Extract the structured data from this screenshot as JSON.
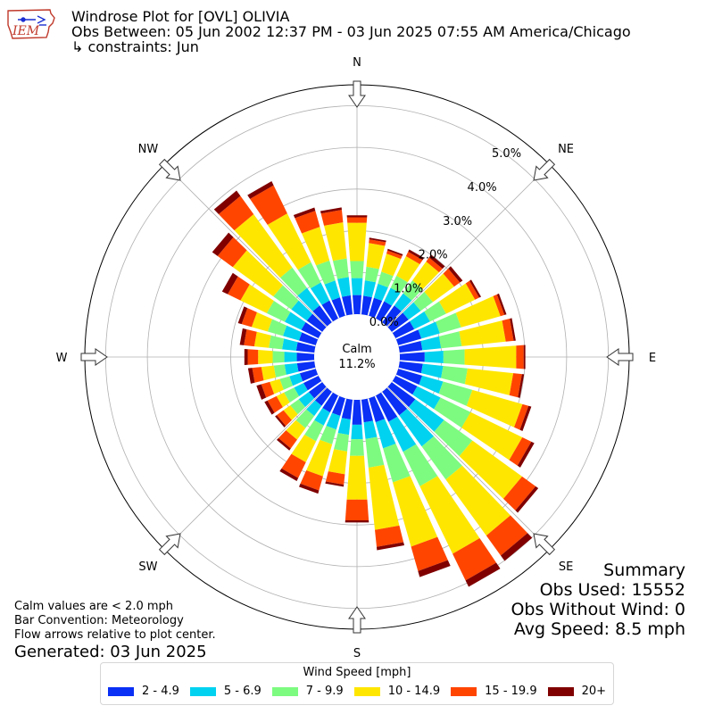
{
  "header": {
    "title": "Windrose Plot for [OVL] OLIVIA",
    "obs_between": "Obs Between: 05 Jun 2002 12:37 PM - 03 Jun 2025 07:55 AM America/Chicago",
    "constraints": "↳ constraints: Jun",
    "logo_text": "IEM"
  },
  "notes": {
    "calm_note": "Calm values are < 2.0 mph",
    "bar_convention": "Bar Convention: Meteorology",
    "flow_arrows": "Flow arrows relative to plot center.",
    "generated": "Generated: 03 Jun 2025"
  },
  "summary": {
    "title": "Summary",
    "obs_used": "Obs Used: 15552",
    "obs_without_wind": "Obs Without Wind: 0",
    "avg_speed": "Avg Speed: 8.5 mph"
  },
  "legend": {
    "title": "Wind Speed [mph]",
    "items": [
      {
        "label": "2 - 4.9",
        "color": "#0a2ff5"
      },
      {
        "label": "5 - 6.9",
        "color": "#00d2f0"
      },
      {
        "label": "7 - 9.9",
        "color": "#7dfb80"
      },
      {
        "label": "10 - 14.9",
        "color": "#ffe600"
      },
      {
        "label": "15 - 19.9",
        "color": "#ff4500"
      },
      {
        "label": "20+",
        "color": "#800000"
      }
    ]
  },
  "chart_data": {
    "type": "windrose",
    "calm_label": "Calm",
    "calm_percent": "11.2%",
    "radial_ticks": [
      "0.0%",
      "1.0%",
      "2.0%",
      "3.0%",
      "4.0%",
      "5.0%"
    ],
    "radial_tick_values": [
      0,
      1,
      2,
      3,
      4,
      5
    ],
    "radial_max": 5.5,
    "radial_label_angle_deg": 36,
    "compass_labels": [
      {
        "label": "N",
        "deg": 0
      },
      {
        "label": "NE",
        "deg": 45
      },
      {
        "label": "E",
        "deg": 90
      },
      {
        "label": "SE",
        "deg": 135
      },
      {
        "label": "S",
        "deg": 180
      },
      {
        "label": "SW",
        "deg": 225
      },
      {
        "label": "W",
        "deg": 270
      },
      {
        "label": "NW",
        "deg": 315
      }
    ],
    "series_names": [
      "2 - 4.9",
      "5 - 6.9",
      "7 - 9.9",
      "10 - 14.9",
      "15 - 19.9",
      "20+"
    ],
    "directions": [
      0,
      10,
      20,
      30,
      40,
      50,
      60,
      70,
      80,
      90,
      100,
      110,
      120,
      130,
      140,
      150,
      160,
      170,
      180,
      190,
      200,
      210,
      220,
      230,
      240,
      250,
      260,
      270,
      280,
      290,
      300,
      310,
      320,
      330,
      340,
      350
    ],
    "cumulative": [
      [
        0.46,
        0.87,
        1.28,
        2.2,
        2.33,
        2.38
      ],
      [
        0.45,
        0.82,
        1.15,
        1.72,
        1.81,
        1.85
      ],
      [
        0.45,
        0.8,
        1.1,
        1.55,
        1.63,
        1.67
      ],
      [
        0.46,
        0.82,
        1.14,
        1.66,
        1.78,
        1.84
      ],
      [
        0.5,
        0.86,
        1.24,
        1.8,
        1.92,
        2.0
      ],
      [
        0.5,
        0.86,
        1.22,
        1.85,
        2.02,
        2.1
      ],
      [
        0.5,
        0.92,
        1.35,
        2.12,
        2.23,
        2.28
      ],
      [
        0.58,
        1.04,
        1.57,
        2.55,
        2.65,
        2.7
      ],
      [
        0.55,
        1.0,
        1.5,
        2.56,
        2.75,
        2.8
      ],
      [
        0.6,
        1.05,
        1.56,
        2.8,
        2.98,
        3.02
      ],
      [
        0.56,
        1.05,
        1.64,
        2.74,
        2.95,
        3.0
      ],
      [
        0.6,
        1.12,
        1.85,
        3.1,
        3.25,
        3.32
      ],
      [
        0.58,
        1.2,
        2.0,
        3.38,
        3.62,
        3.7
      ],
      [
        0.7,
        1.55,
        2.39,
        3.86,
        4.26,
        4.34
      ],
      [
        0.7,
        1.62,
        2.6,
        4.26,
        4.85,
        5.01
      ],
      [
        0.7,
        1.5,
        2.42,
        4.22,
        4.93,
        5.1
      ],
      [
        0.6,
        1.25,
        2.1,
        3.7,
        4.31,
        4.46
      ],
      [
        0.55,
        0.95,
        1.64,
        3.14,
        3.55,
        3.63
      ],
      [
        0.6,
        0.95,
        1.35,
        2.4,
        2.9,
        2.95
      ],
      [
        0.48,
        0.85,
        1.25,
        1.8,
        2.05,
        2.1
      ],
      [
        0.44,
        0.78,
        1.15,
        1.95,
        2.3,
        2.38
      ],
      [
        0.45,
        0.8,
        1.22,
        1.78,
        2.2,
        2.28
      ],
      [
        0.42,
        0.72,
        1.08,
        1.42,
        1.68,
        1.74
      ],
      [
        0.4,
        0.7,
        0.95,
        1.15,
        1.35,
        1.4
      ],
      [
        0.4,
        0.65,
        0.92,
        1.12,
        1.36,
        1.44
      ],
      [
        0.4,
        0.66,
        0.9,
        1.15,
        1.36,
        1.48
      ],
      [
        0.42,
        0.72,
        0.98,
        1.28,
        1.5,
        1.6
      ],
      [
        0.42,
        0.72,
        1.0,
        1.35,
        1.6,
        1.68
      ],
      [
        0.44,
        0.78,
        1.1,
        1.45,
        1.7,
        1.8
      ],
      [
        0.42,
        0.82,
        1.2,
        1.6,
        1.85,
        1.94
      ],
      [
        0.46,
        0.9,
        1.38,
        2.08,
        2.42,
        2.57
      ],
      [
        0.46,
        0.92,
        1.45,
        2.65,
        3.1,
        3.26
      ],
      [
        0.5,
        1.02,
        1.62,
        3.2,
        3.74,
        3.9
      ],
      [
        0.48,
        0.96,
        1.5,
        2.8,
        3.55,
        3.66
      ],
      [
        0.46,
        0.88,
        1.38,
        2.22,
        2.62,
        2.7
      ],
      [
        0.46,
        0.9,
        1.35,
        2.22,
        2.52,
        2.58
      ]
    ]
  }
}
